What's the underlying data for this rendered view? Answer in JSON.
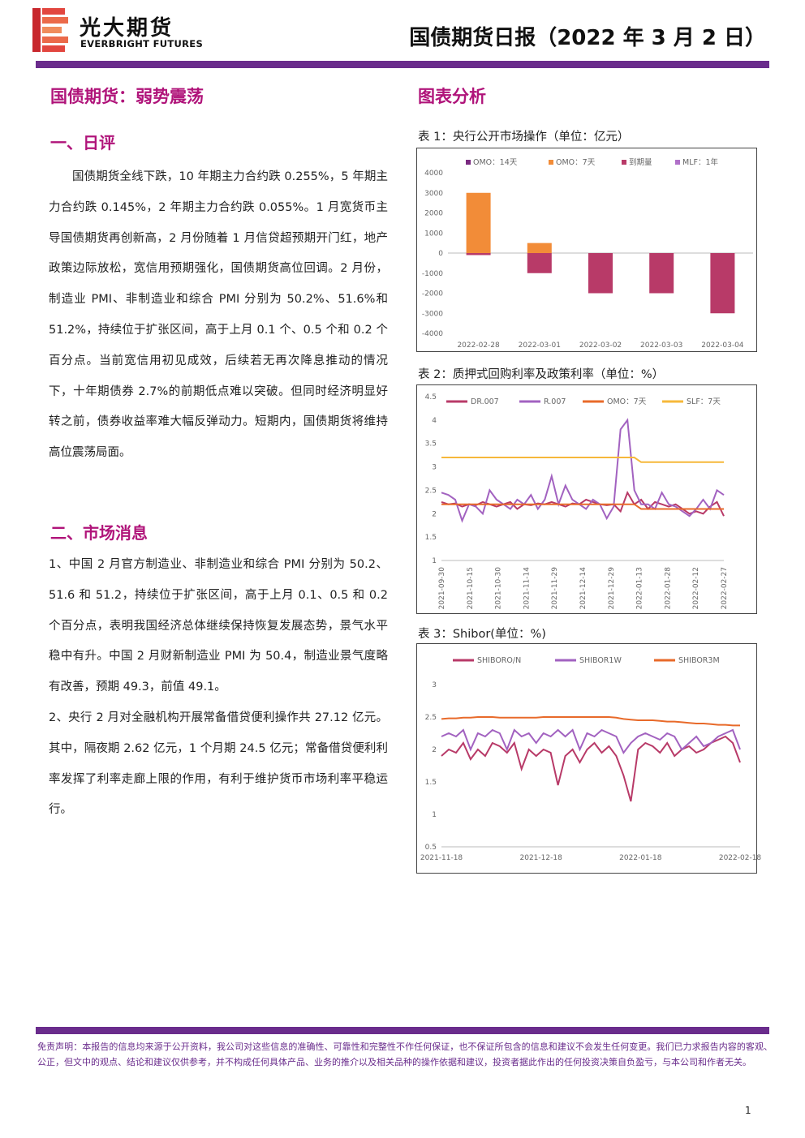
{
  "header": {
    "brand_cn": "光大期货",
    "brand_en": "EVERBRIGHT FUTURES",
    "report_title": "国债期货日报（2022 年 3 月 2 日）",
    "accent": "#6a2c8c",
    "heading_color": "#b0147a"
  },
  "left": {
    "main_title": "国债期货：弱势震荡",
    "sec1_title": "一、日评",
    "sec1_text": "国债期货全线下跌，10 年期主力合约跌 0.255%，5 年期主力合约跌 0.145%，2 年期主力合约跌 0.055%。1 月宽货币主导国债期货再创新高，2 月份随着 1 月信贷超预期开门红，地产政策边际放松，宽信用预期强化，国债期货高位回调。2 月份，制造业 PMI、非制造业和综合 PMI 分别为 50.2%、51.6%和 51.2%，持续位于扩张区间，高于上月 0.1 个、0.5 个和 0.2 个百分点。当前宽信用初见成效，后续若无再次降息推动的情况下，十年期债券 2.7%的前期低点难以突破。但同时经济明显好转之前，债券收益率难大幅反弹动力。短期内，国债期货将维持高位震荡局面。",
    "sec2_title": "二、市场消息",
    "news1": "1、中国 2 月官方制造业、非制造业和综合 PMI 分别为 50.2、51.6 和 51.2，持续位于扩张区间，高于上月 0.1、0.5 和 0.2 个百分点，表明我国经济总体继续保持恢复发展态势，景气水平稳中有升。中国 2 月财新制造业 PMI 为 50.4，制造业景气度略有改善，预期 49.3，前值 49.1。",
    "news2": "2、央行 2 月对全融机构开展常备借贷便利操作共 27.12 亿元。其中，隔夜期 2.62 亿元，1 个月期 24.5 亿元；常备借贷便利利率发挥了利率走廊上限的作用，有利于维护货币市场利率平稳运行。"
  },
  "right": {
    "title": "图表分析",
    "cap1": "表 1：央行公开市场操作（单位：亿元）",
    "cap2": "表 2：质押式回购利率及政策利率（单位：%）",
    "cap3": "表 3：Shibor(单位：%)"
  },
  "chart_data": [
    {
      "type": "bar",
      "categories": [
        "2022-02-28",
        "2022-03-01",
        "2022-03-02",
        "2022-03-03",
        "2022-03-04"
      ],
      "series": [
        {
          "name": "OMO：14天",
          "color": "#7a2a80",
          "values": [
            0,
            0,
            0,
            0,
            0
          ]
        },
        {
          "name": "OMO：7天",
          "color": "#f28c38",
          "values": [
            3000,
            500,
            0,
            0,
            0
          ]
        },
        {
          "name": "到期量",
          "color": "#b83a68",
          "values": [
            -100,
            -1000,
            -2000,
            -2000,
            -3000
          ]
        },
        {
          "name": "MLF：1年",
          "color": "#b070c8",
          "values": [
            0,
            0,
            0,
            0,
            0
          ]
        }
      ],
      "ylim": [
        -4000,
        4000
      ],
      "yticks": [
        "4000",
        "3000",
        "2000",
        "1000",
        "0",
        "-1000",
        "-2000",
        "-3000",
        "-4000"
      ]
    },
    {
      "type": "line",
      "x_ticks": [
        "2021-09-30",
        "2021-10-15",
        "2021-10-30",
        "2021-11-14",
        "2021-11-29",
        "2021-12-14",
        "2021-12-29",
        "2022-01-13",
        "2022-01-28",
        "2022-02-12",
        "2022-02-27"
      ],
      "ylim": [
        1,
        4.5
      ],
      "yticks": [
        "4.5",
        "4",
        "3.5",
        "3",
        "2.5",
        "2",
        "1.5",
        "1"
      ],
      "series": [
        {
          "name": "DR.007",
          "color": "#b83a68",
          "values": [
            2.25,
            2.2,
            2.22,
            2.15,
            2.2,
            2.18,
            2.25,
            2.2,
            2.15,
            2.2,
            2.25,
            2.1,
            2.2,
            2.18,
            2.22,
            2.2,
            2.25,
            2.2,
            2.15,
            2.22,
            2.2,
            2.3,
            2.25,
            2.2,
            2.18,
            2.2,
            2.05,
            2.45,
            2.2,
            2.3,
            2.1,
            2.25,
            2.2,
            2.15,
            2.2,
            2.1,
            2.0,
            2.05,
            2.0,
            2.15,
            2.25,
            1.95
          ]
        },
        {
          "name": "R.007",
          "color": "#a262c0",
          "values": [
            2.45,
            2.4,
            2.3,
            1.85,
            2.2,
            2.15,
            2.0,
            2.5,
            2.3,
            2.2,
            2.1,
            2.3,
            2.2,
            2.4,
            2.1,
            2.3,
            2.8,
            2.2,
            2.6,
            2.3,
            2.2,
            2.1,
            2.3,
            2.2,
            1.9,
            2.15,
            3.8,
            4.0,
            2.5,
            2.2,
            2.2,
            2.1,
            2.45,
            2.2,
            2.15,
            2.05,
            1.95,
            2.1,
            2.3,
            2.1,
            2.5,
            2.4
          ]
        },
        {
          "name": "OMO：7天",
          "color": "#e86a2a",
          "values": [
            2.2,
            2.2,
            2.2,
            2.2,
            2.2,
            2.2,
            2.2,
            2.2,
            2.2,
            2.2,
            2.2,
            2.2,
            2.2,
            2.2,
            2.2,
            2.2,
            2.2,
            2.2,
            2.2,
            2.2,
            2.2,
            2.2,
            2.2,
            2.2,
            2.2,
            2.2,
            2.2,
            2.2,
            2.2,
            2.1,
            2.1,
            2.1,
            2.1,
            2.1,
            2.1,
            2.1,
            2.1,
            2.1,
            2.1,
            2.1,
            2.1,
            2.1
          ]
        },
        {
          "name": "SLF：7天",
          "color": "#f6b83a",
          "values": [
            3.2,
            3.2,
            3.2,
            3.2,
            3.2,
            3.2,
            3.2,
            3.2,
            3.2,
            3.2,
            3.2,
            3.2,
            3.2,
            3.2,
            3.2,
            3.2,
            3.2,
            3.2,
            3.2,
            3.2,
            3.2,
            3.2,
            3.2,
            3.2,
            3.2,
            3.2,
            3.2,
            3.2,
            3.2,
            3.1,
            3.1,
            3.1,
            3.1,
            3.1,
            3.1,
            3.1,
            3.1,
            3.1,
            3.1,
            3.1,
            3.1,
            3.1
          ]
        }
      ]
    },
    {
      "type": "line",
      "x_ticks": [
        "2021-11-18",
        "2021-12-18",
        "2022-01-18",
        "2022-02-18"
      ],
      "ylim": [
        0.5,
        3
      ],
      "yticks": [
        "3",
        "2.5",
        "2",
        "1.5",
        "1",
        "0.5"
      ],
      "series": [
        {
          "name": "SHIBORO/N",
          "color": "#b83a68",
          "values": [
            1.9,
            2.0,
            1.95,
            2.1,
            1.85,
            2.0,
            1.9,
            2.1,
            2.05,
            1.95,
            2.1,
            1.7,
            2.0,
            1.9,
            2.0,
            1.95,
            1.45,
            1.9,
            2.0,
            1.8,
            2.0,
            2.1,
            1.95,
            2.05,
            1.9,
            1.6,
            1.2,
            2.0,
            2.1,
            2.05,
            1.95,
            2.1,
            1.9,
            2.0,
            2.05,
            1.95,
            2.0,
            2.1,
            2.15,
            2.2,
            2.1,
            1.8
          ]
        },
        {
          "name": "SHIBOR1W",
          "color": "#a262c0",
          "values": [
            2.2,
            2.25,
            2.2,
            2.3,
            2.0,
            2.25,
            2.2,
            2.3,
            2.25,
            2.0,
            2.3,
            2.2,
            2.25,
            2.1,
            2.25,
            2.2,
            2.3,
            2.2,
            2.3,
            2.0,
            2.25,
            2.2,
            2.3,
            2.25,
            2.2,
            1.95,
            2.1,
            2.2,
            2.25,
            2.2,
            2.15,
            2.25,
            2.2,
            2.0,
            2.1,
            2.2,
            2.05,
            2.1,
            2.2,
            2.25,
            2.3,
            2.0
          ]
        },
        {
          "name": "SHIBOR3M",
          "color": "#e86a2a",
          "values": [
            2.47,
            2.48,
            2.48,
            2.49,
            2.49,
            2.5,
            2.5,
            2.5,
            2.49,
            2.49,
            2.49,
            2.49,
            2.49,
            2.49,
            2.5,
            2.5,
            2.5,
            2.5,
            2.5,
            2.5,
            2.5,
            2.5,
            2.5,
            2.5,
            2.49,
            2.47,
            2.46,
            2.45,
            2.45,
            2.45,
            2.44,
            2.43,
            2.43,
            2.42,
            2.41,
            2.4,
            2.4,
            2.39,
            2.38,
            2.38,
            2.37,
            2.37
          ]
        }
      ]
    }
  ],
  "footer": {
    "disclaimer": "免责声明：本报告的信息均来源于公开资料，我公司对这些信息的准确性、可靠性和完整性不作任何保证，也不保证所包含的信息和建议不会发生任何变更。我们已力求报告内容的客观、公正，但文中的观点、结论和建议仅供参考，并不构成任何具体产品、业务的推介以及相关品种的操作依据和建议，投资者据此作出的任何投资决策自负盈亏，与本公司和作者无关。",
    "page_number": "1"
  }
}
